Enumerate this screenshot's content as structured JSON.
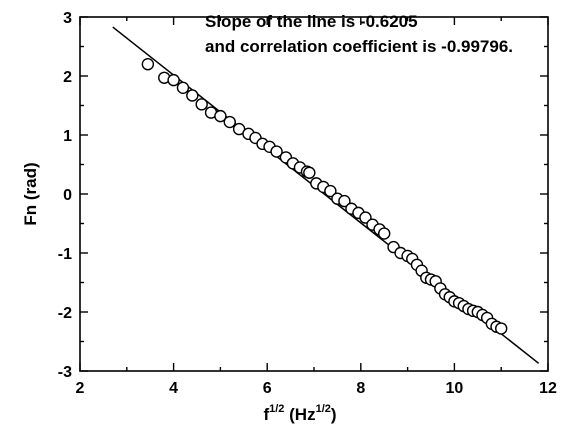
{
  "chart_data": {
    "type": "scatter",
    "title": "",
    "annotations": [
      "Slope of the line is -0.6205",
      "and correlation coefficient is -0.99796."
    ],
    "xlabel": {
      "base": "f",
      "base_sup": "1/2",
      "unit_open": " (Hz",
      "unit_sup": "1/2",
      "unit_close": ")"
    },
    "ylabel": "Fn (rad)",
    "xlim": [
      2,
      12
    ],
    "ylim": [
      -3,
      3
    ],
    "xticks": [
      2,
      4,
      6,
      8,
      10,
      12
    ],
    "yticks": [
      -3,
      -2,
      -1,
      0,
      1,
      2,
      3
    ],
    "grid": false,
    "fit_line": {
      "slope": -0.6205,
      "x_start": 2.7,
      "y_start": 2.83,
      "x_end": 11.8,
      "y_end": -2.87
    },
    "series": [
      {
        "marker": "open-circle",
        "x": [
          3.45,
          3.8,
          4.0,
          4.2,
          4.4,
          4.6,
          4.8,
          5.0,
          5.2,
          5.4,
          5.6,
          5.75,
          5.9,
          6.05,
          6.2,
          6.4,
          6.55,
          6.7,
          6.85,
          6.9,
          7.05,
          7.2,
          7.35,
          7.5,
          7.65,
          7.8,
          7.95,
          8.1,
          8.25,
          8.4,
          8.5,
          8.7,
          8.85,
          9.0,
          9.1,
          9.2,
          9.3,
          9.4,
          9.5,
          9.6,
          9.7,
          9.8,
          9.9,
          10.0,
          10.1,
          10.2,
          10.3,
          10.4,
          10.5,
          10.6,
          10.7,
          10.8,
          10.9,
          11.0
        ],
        "y": [
          2.2,
          1.97,
          1.93,
          1.8,
          1.67,
          1.52,
          1.38,
          1.32,
          1.22,
          1.1,
          1.02,
          0.95,
          0.85,
          0.8,
          0.72,
          0.62,
          0.52,
          0.45,
          0.38,
          0.36,
          0.18,
          0.12,
          0.05,
          -0.08,
          -0.12,
          -0.25,
          -0.32,
          -0.4,
          -0.52,
          -0.6,
          -0.67,
          -0.9,
          -1.0,
          -1.05,
          -1.1,
          -1.2,
          -1.3,
          -1.42,
          -1.45,
          -1.48,
          -1.6,
          -1.7,
          -1.75,
          -1.82,
          -1.85,
          -1.9,
          -1.95,
          -1.98,
          -2.0,
          -2.05,
          -2.1,
          -2.2,
          -2.25,
          -2.28
        ]
      }
    ]
  }
}
